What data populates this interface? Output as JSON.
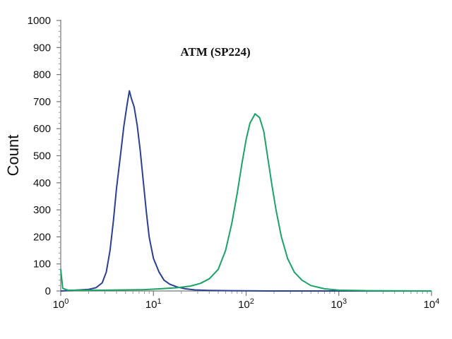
{
  "chart_data": {
    "type": "line",
    "title": "ATM (SP224)",
    "xlabel": "",
    "ylabel": "Count",
    "x_scale": "log",
    "xlim": [
      1,
      10000
    ],
    "ylim": [
      0,
      1000
    ],
    "x_ticks": [
      {
        "value": 1,
        "base": "10",
        "exp": "0"
      },
      {
        "value": 10,
        "base": "10",
        "exp": "1"
      },
      {
        "value": 100,
        "base": "10",
        "exp": "2"
      },
      {
        "value": 1000,
        "base": "10",
        "exp": "3"
      },
      {
        "value": 10000,
        "base": "10",
        "exp": "4"
      }
    ],
    "y_ticks": [
      "0",
      "100",
      "200",
      "300",
      "400",
      "500",
      "600",
      "700",
      "800",
      "900",
      "1000"
    ],
    "grid": false,
    "legend": "none",
    "series": [
      {
        "color": "#2b3f93",
        "points": [
          [
            1.0,
            0
          ],
          [
            1.3,
            2
          ],
          [
            1.6,
            4
          ],
          [
            2.0,
            6
          ],
          [
            2.4,
            12
          ],
          [
            2.8,
            30
          ],
          [
            3.1,
            70
          ],
          [
            3.4,
            150
          ],
          [
            3.7,
            260
          ],
          [
            4.0,
            380
          ],
          [
            4.4,
            500
          ],
          [
            4.8,
            610
          ],
          [
            5.2,
            690
          ],
          [
            5.5,
            740
          ],
          [
            5.8,
            710
          ],
          [
            6.2,
            680
          ],
          [
            6.7,
            610
          ],
          [
            7.2,
            520
          ],
          [
            7.8,
            400
          ],
          [
            8.4,
            290
          ],
          [
            9.0,
            200
          ],
          [
            10.0,
            120
          ],
          [
            11.5,
            70
          ],
          [
            13.0,
            40
          ],
          [
            15.0,
            25
          ],
          [
            18.0,
            15
          ],
          [
            22.0,
            8
          ],
          [
            28.0,
            4
          ],
          [
            40.0,
            2
          ],
          [
            70.0,
            1
          ],
          [
            200,
            0
          ],
          [
            10000,
            0
          ]
        ]
      },
      {
        "color": "#19a466",
        "points": [
          [
            1.0,
            80
          ],
          [
            1.05,
            10
          ],
          [
            1.2,
            3
          ],
          [
            3.0,
            3
          ],
          [
            8.0,
            5
          ],
          [
            12.0,
            8
          ],
          [
            18.0,
            12
          ],
          [
            25.0,
            18
          ],
          [
            32.0,
            28
          ],
          [
            40.0,
            45
          ],
          [
            50.0,
            80
          ],
          [
            60.0,
            150
          ],
          [
            70.0,
            250
          ],
          [
            80.0,
            360
          ],
          [
            90.0,
            470
          ],
          [
            100.0,
            560
          ],
          [
            110.0,
            620
          ],
          [
            125.0,
            655
          ],
          [
            140.0,
            640
          ],
          [
            155.0,
            590
          ],
          [
            170.0,
            500
          ],
          [
            190.0,
            390
          ],
          [
            210.0,
            300
          ],
          [
            240.0,
            200
          ],
          [
            280.0,
            120
          ],
          [
            330.0,
            70
          ],
          [
            400.0,
            40
          ],
          [
            500.0,
            20
          ],
          [
            700.0,
            8
          ],
          [
            1000.0,
            3
          ],
          [
            2000.0,
            1
          ],
          [
            10000,
            0
          ]
        ]
      }
    ]
  }
}
